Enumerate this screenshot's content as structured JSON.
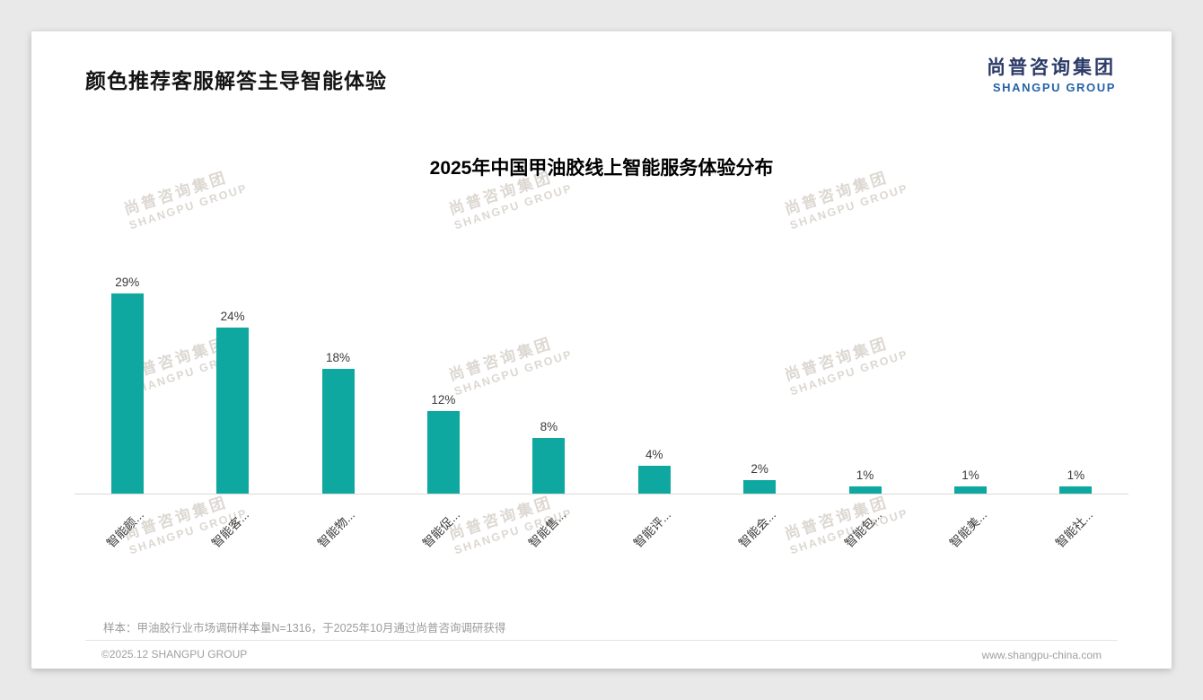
{
  "slide": {
    "title": "颜色推荐客服解答主导智能体验",
    "logo": {
      "cn": "尚普咨询集团",
      "en": "SHANGPU GROUP"
    },
    "note": "样本：甲油胶行业市场调研样本量N=1316，于2025年10月通过尚普咨询调研获得",
    "footer": {
      "left": "©2025.12 SHANGPU GROUP",
      "right": "www.shangpu-china.com"
    }
  },
  "watermark": {
    "cn": "尚普咨询集团",
    "en": "SHANGPU GROUP"
  },
  "chart_data": {
    "type": "bar",
    "title": "2025年中国甲油胶线上智能服务体验分布",
    "categories": [
      "智能颜...",
      "智能客...",
      "智能物...",
      "智能促...",
      "智能售...",
      "智能评...",
      "智能会...",
      "智能包...",
      "智能美...",
      "智能社..."
    ],
    "values": [
      29,
      24,
      18,
      12,
      8,
      4,
      2,
      1,
      1,
      1
    ],
    "unit": "%",
    "value_labels": true,
    "xlabel": "",
    "ylabel": "",
    "ylim": [
      0,
      32
    ],
    "grid": false,
    "legend": false,
    "bar_color": "#0fa8a0"
  },
  "colors": {
    "accent_teal": "#0fa8a0",
    "logo_navy": "#2b3a67",
    "logo_blue": "#2563a8",
    "muted_text": "#9b9b9b"
  }
}
